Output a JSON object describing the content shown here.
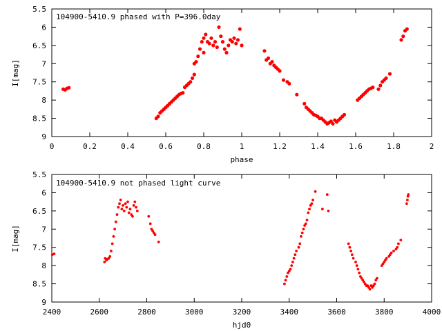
{
  "chart_data": [
    {
      "type": "scatter",
      "title": "104900-5410.9 phased with P=396.0day",
      "xlabel": "phase",
      "ylabel": "I[mag]",
      "xlim": [
        0,
        2
      ],
      "ylim": [
        5.5,
        9
      ],
      "y_inverted": true,
      "grid": false,
      "marker_color": "#ff0000",
      "xticks": [
        "0",
        "0.2",
        "0.4",
        "0.6",
        "0.8",
        "1",
        "1.2",
        "1.4",
        "1.6",
        "1.8",
        "2"
      ],
      "yticks": [
        "5.5",
        "6",
        "6.5",
        "7",
        "7.5",
        "8",
        "8.5",
        "9"
      ],
      "series": [
        {
          "points": [
            [
              0.06,
              7.7
            ],
            [
              0.07,
              7.72
            ],
            [
              0.08,
              7.68
            ],
            [
              0.09,
              7.66
            ],
            [
              0.55,
              8.5
            ],
            [
              0.56,
              8.45
            ],
            [
              0.57,
              8.35
            ],
            [
              0.58,
              8.3
            ],
            [
              0.59,
              8.25
            ],
            [
              0.6,
              8.2
            ],
            [
              0.61,
              8.15
            ],
            [
              0.62,
              8.1
            ],
            [
              0.63,
              8.05
            ],
            [
              0.64,
              8.0
            ],
            [
              0.65,
              7.95
            ],
            [
              0.66,
              7.9
            ],
            [
              0.67,
              7.85
            ],
            [
              0.68,
              7.82
            ],
            [
              0.69,
              7.8
            ],
            [
              0.7,
              7.65
            ],
            [
              0.71,
              7.6
            ],
            [
              0.72,
              7.55
            ],
            [
              0.73,
              7.5
            ],
            [
              0.74,
              7.4
            ],
            [
              0.75,
              7.3
            ],
            [
              0.75,
              7.0
            ],
            [
              0.76,
              6.95
            ],
            [
              0.77,
              6.8
            ],
            [
              0.78,
              6.6
            ],
            [
              0.79,
              6.4
            ],
            [
              0.8,
              6.3
            ],
            [
              0.8,
              6.7
            ],
            [
              0.81,
              6.2
            ],
            [
              0.82,
              6.4
            ],
            [
              0.83,
              6.45
            ],
            [
              0.84,
              6.3
            ],
            [
              0.85,
              6.5
            ],
            [
              0.86,
              6.4
            ],
            [
              0.87,
              6.55
            ],
            [
              0.88,
              6.0
            ],
            [
              0.89,
              6.25
            ],
            [
              0.9,
              6.4
            ],
            [
              0.91,
              6.6
            ],
            [
              0.92,
              6.7
            ],
            [
              0.93,
              6.5
            ],
            [
              0.94,
              6.35
            ],
            [
              0.95,
              6.4
            ],
            [
              0.96,
              6.3
            ],
            [
              0.97,
              6.45
            ],
            [
              0.98,
              6.35
            ],
            [
              0.99,
              6.05
            ],
            [
              1.0,
              6.5
            ],
            [
              1.12,
              6.65
            ],
            [
              1.13,
              6.9
            ],
            [
              1.14,
              6.85
            ],
            [
              1.15,
              7.0
            ],
            [
              1.16,
              6.95
            ],
            [
              1.17,
              7.05
            ],
            [
              1.18,
              7.1
            ],
            [
              1.19,
              7.15
            ],
            [
              1.2,
              7.2
            ],
            [
              1.22,
              7.45
            ],
            [
              1.24,
              7.5
            ],
            [
              1.25,
              7.55
            ],
            [
              1.29,
              7.85
            ],
            [
              1.33,
              8.1
            ],
            [
              1.34,
              8.2
            ],
            [
              1.35,
              8.25
            ],
            [
              1.36,
              8.3
            ],
            [
              1.37,
              8.35
            ],
            [
              1.38,
              8.4
            ],
            [
              1.39,
              8.42
            ],
            [
              1.4,
              8.45
            ],
            [
              1.41,
              8.5
            ],
            [
              1.42,
              8.5
            ],
            [
              1.43,
              8.55
            ],
            [
              1.44,
              8.6
            ],
            [
              1.45,
              8.65
            ],
            [
              1.46,
              8.62
            ],
            [
              1.47,
              8.58
            ],
            [
              1.48,
              8.65
            ],
            [
              1.49,
              8.55
            ],
            [
              1.5,
              8.6
            ],
            [
              1.51,
              8.55
            ],
            [
              1.52,
              8.5
            ],
            [
              1.53,
              8.45
            ],
            [
              1.54,
              8.4
            ],
            [
              1.61,
              8.0
            ],
            [
              1.62,
              7.95
            ],
            [
              1.63,
              7.9
            ],
            [
              1.64,
              7.85
            ],
            [
              1.65,
              7.8
            ],
            [
              1.66,
              7.75
            ],
            [
              1.67,
              7.7
            ],
            [
              1.68,
              7.68
            ],
            [
              1.69,
              7.65
            ],
            [
              1.72,
              7.7
            ],
            [
              1.73,
              7.6
            ],
            [
              1.74,
              7.5
            ],
            [
              1.75,
              7.45
            ],
            [
              1.76,
              7.4
            ],
            [
              1.78,
              7.28
            ],
            [
              1.84,
              6.35
            ],
            [
              1.85,
              6.25
            ],
            [
              1.86,
              6.1
            ],
            [
              1.87,
              6.05
            ]
          ]
        }
      ]
    },
    {
      "type": "scatter",
      "title": "104900-5410.9 not phased light curve",
      "xlabel": "hjd0",
      "ylabel": "I[mag]",
      "xlim": [
        2400,
        4000
      ],
      "ylim": [
        5.5,
        9
      ],
      "y_inverted": true,
      "grid": false,
      "marker_color": "#ff0000",
      "xticks": [
        "2400",
        "2600",
        "2800",
        "3000",
        "3200",
        "3400",
        "3600",
        "3800",
        "4000"
      ],
      "yticks": [
        "5.5",
        "6",
        "6.5",
        "7",
        "7.5",
        "8",
        "8.5",
        "9"
      ],
      "series": [
        {
          "points": [
            [
              2402,
              7.7
            ],
            [
              2410,
              7.68
            ],
            [
              2622,
              7.9
            ],
            [
              2625,
              7.8
            ],
            [
              2630,
              7.85
            ],
            [
              2635,
              7.82
            ],
            [
              2640,
              7.8
            ],
            [
              2645,
              7.75
            ],
            [
              2650,
              7.6
            ],
            [
              2655,
              7.4
            ],
            [
              2660,
              7.2
            ],
            [
              2665,
              7.0
            ],
            [
              2670,
              6.8
            ],
            [
              2675,
              6.6
            ],
            [
              2680,
              6.4
            ],
            [
              2685,
              6.3
            ],
            [
              2690,
              6.2
            ],
            [
              2695,
              6.45
            ],
            [
              2700,
              6.35
            ],
            [
              2705,
              6.5
            ],
            [
              2710,
              6.3
            ],
            [
              2715,
              6.4
            ],
            [
              2720,
              6.25
            ],
            [
              2725,
              6.55
            ],
            [
              2730,
              6.45
            ],
            [
              2735,
              6.6
            ],
            [
              2740,
              6.65
            ],
            [
              2745,
              6.35
            ],
            [
              2750,
              6.25
            ],
            [
              2755,
              6.4
            ],
            [
              2760,
              6.5
            ],
            [
              2808,
              6.65
            ],
            [
              2815,
              6.85
            ],
            [
              2820,
              7.0
            ],
            [
              2825,
              7.05
            ],
            [
              2830,
              7.1
            ],
            [
              2835,
              7.15
            ],
            [
              2850,
              7.35
            ],
            [
              3380,
              8.5
            ],
            [
              3385,
              8.4
            ],
            [
              3390,
              8.3
            ],
            [
              3395,
              8.2
            ],
            [
              3400,
              8.15
            ],
            [
              3405,
              8.1
            ],
            [
              3410,
              8.0
            ],
            [
              3415,
              7.9
            ],
            [
              3420,
              7.8
            ],
            [
              3425,
              7.7
            ],
            [
              3430,
              7.6
            ],
            [
              3440,
              7.5
            ],
            [
              3445,
              7.4
            ],
            [
              3450,
              7.2
            ],
            [
              3455,
              7.1
            ],
            [
              3460,
              7.0
            ],
            [
              3465,
              6.9
            ],
            [
              3470,
              6.85
            ],
            [
              3475,
              6.75
            ],
            [
              3480,
              6.55
            ],
            [
              3485,
              6.45
            ],
            [
              3490,
              6.35
            ],
            [
              3495,
              6.3
            ],
            [
              3500,
              6.2
            ],
            [
              3510,
              5.97
            ],
            [
              3540,
              6.45
            ],
            [
              3560,
              6.05
            ],
            [
              3565,
              6.5
            ],
            [
              3650,
              7.4
            ],
            [
              3655,
              7.5
            ],
            [
              3660,
              7.6
            ],
            [
              3665,
              7.7
            ],
            [
              3670,
              7.8
            ],
            [
              3680,
              7.9
            ],
            [
              3685,
              8.0
            ],
            [
              3690,
              8.1
            ],
            [
              3695,
              8.2
            ],
            [
              3700,
              8.3
            ],
            [
              3705,
              8.35
            ],
            [
              3710,
              8.4
            ],
            [
              3715,
              8.45
            ],
            [
              3720,
              8.5
            ],
            [
              3725,
              8.55
            ],
            [
              3730,
              8.55
            ],
            [
              3735,
              8.6
            ],
            [
              3740,
              8.65
            ],
            [
              3745,
              8.55
            ],
            [
              3750,
              8.6
            ],
            [
              3755,
              8.55
            ],
            [
              3760,
              8.5
            ],
            [
              3765,
              8.4
            ],
            [
              3770,
              8.35
            ],
            [
              3790,
              8.0
            ],
            [
              3795,
              7.95
            ],
            [
              3800,
              7.9
            ],
            [
              3805,
              7.85
            ],
            [
              3810,
              7.8
            ],
            [
              3820,
              7.75
            ],
            [
              3825,
              7.7
            ],
            [
              3830,
              7.65
            ],
            [
              3840,
              7.6
            ],
            [
              3850,
              7.55
            ],
            [
              3855,
              7.5
            ],
            [
              3860,
              7.4
            ],
            [
              3870,
              7.3
            ],
            [
              3895,
              6.3
            ],
            [
              3898,
              6.2
            ],
            [
              3900,
              6.1
            ],
            [
              3902,
              6.05
            ]
          ]
        }
      ]
    }
  ]
}
